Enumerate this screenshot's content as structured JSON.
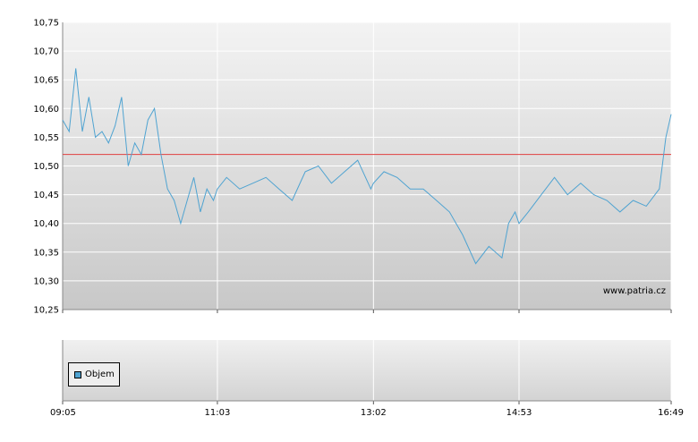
{
  "chart_data": [
    {
      "type": "line",
      "x": [
        "09:05",
        "09:10",
        "09:15",
        "09:20",
        "09:25",
        "09:30",
        "09:35",
        "09:40",
        "09:45",
        "09:50",
        "09:55",
        "10:00",
        "10:05",
        "10:10",
        "10:15",
        "10:20",
        "10:25",
        "10:30",
        "10:35",
        "10:40",
        "10:45",
        "10:50",
        "10:55",
        "11:00",
        "11:03",
        "11:10",
        "11:20",
        "11:30",
        "11:40",
        "11:50",
        "12:00",
        "12:10",
        "12:20",
        "12:30",
        "12:40",
        "12:50",
        "13:00",
        "13:02",
        "13:10",
        "13:20",
        "13:30",
        "13:40",
        "13:50",
        "14:00",
        "14:10",
        "14:20",
        "14:30",
        "14:40",
        "14:45",
        "14:50",
        "14:53",
        "15:00",
        "15:10",
        "15:20",
        "15:30",
        "15:40",
        "15:50",
        "16:00",
        "16:10",
        "16:20",
        "16:30",
        "16:40",
        "16:45",
        "16:49"
      ],
      "series": [
        {
          "values": [
            10.58,
            10.56,
            10.67,
            10.56,
            10.62,
            10.55,
            10.56,
            10.54,
            10.57,
            10.62,
            10.5,
            10.54,
            10.52,
            10.58,
            10.6,
            10.52,
            10.46,
            10.44,
            10.4,
            10.44,
            10.48,
            10.42,
            10.46,
            10.44,
            10.46,
            10.48,
            10.46,
            10.47,
            10.48,
            10.46,
            10.44,
            10.49,
            10.5,
            10.47,
            10.49,
            10.51,
            10.46,
            10.47,
            10.49,
            10.48,
            10.46,
            10.46,
            10.44,
            10.42,
            10.38,
            10.33,
            10.36,
            10.34,
            10.4,
            10.42,
            10.4,
            10.42,
            10.45,
            10.48,
            10.45,
            10.47,
            10.45,
            10.44,
            10.42,
            10.44,
            10.43,
            10.46,
            10.55,
            10.59
          ],
          "color": "#4fa3d1"
        }
      ],
      "reference_line": {
        "value": 10.52,
        "color": "#e04040"
      },
      "xlabel": "",
      "ylabel": "",
      "ylim": [
        10.25,
        10.75
      ],
      "y_ticks": [
        "10,75",
        "10,70",
        "10,65",
        "10,60",
        "10,55",
        "10,50",
        "10,45",
        "10,40",
        "10,35",
        "10,30",
        "10,25"
      ],
      "x_ticks": [
        "09:05",
        "11:03",
        "13:02",
        "14:53",
        "16:49"
      ],
      "grid": true,
      "watermark": "www.patria.cz"
    },
    {
      "type": "bar",
      "legend": [
        "Objem"
      ],
      "legend_placement": "top-left",
      "legend_color": "#4fa3d1",
      "x_ticks": [
        "09:05",
        "11:03",
        "13:02",
        "14:53",
        "16:49"
      ],
      "grid": true
    }
  ]
}
